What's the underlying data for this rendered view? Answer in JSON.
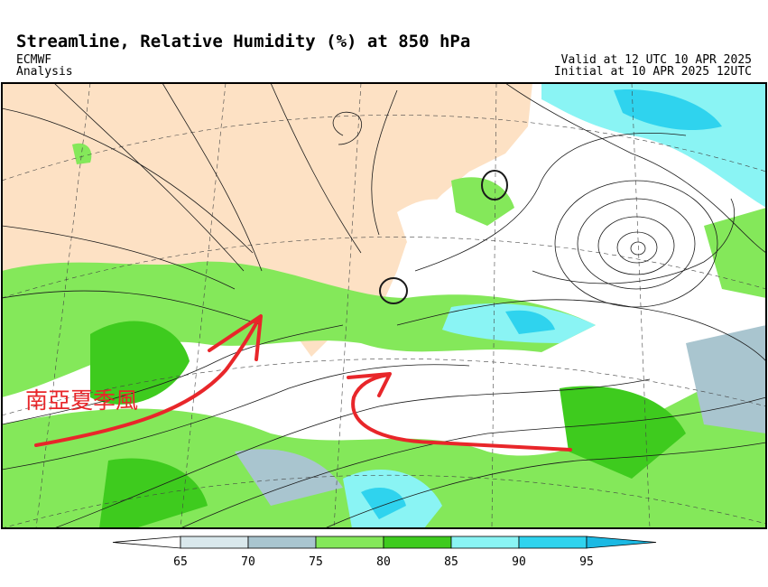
{
  "header": {
    "title": "Streamline, Relative Humidity (%) at 850 hPa",
    "source": "ECMWF",
    "product": "Analysis",
    "valid": "Valid at 12 UTC 10 APR 2025",
    "initial": "Initial at 10 APR 2025 12UTC"
  },
  "annotation": {
    "label": "南亞夏季風"
  },
  "colorbar": {
    "levels": [
      65,
      70,
      75,
      80,
      85,
      90,
      95
    ],
    "colors": [
      "#ffffff",
      "#d9e8ec",
      "#a9c5cf",
      "#84e85a",
      "#3ecb1e",
      "#8af4f4",
      "#2fd3ee",
      "#1bb9e3"
    ]
  }
}
